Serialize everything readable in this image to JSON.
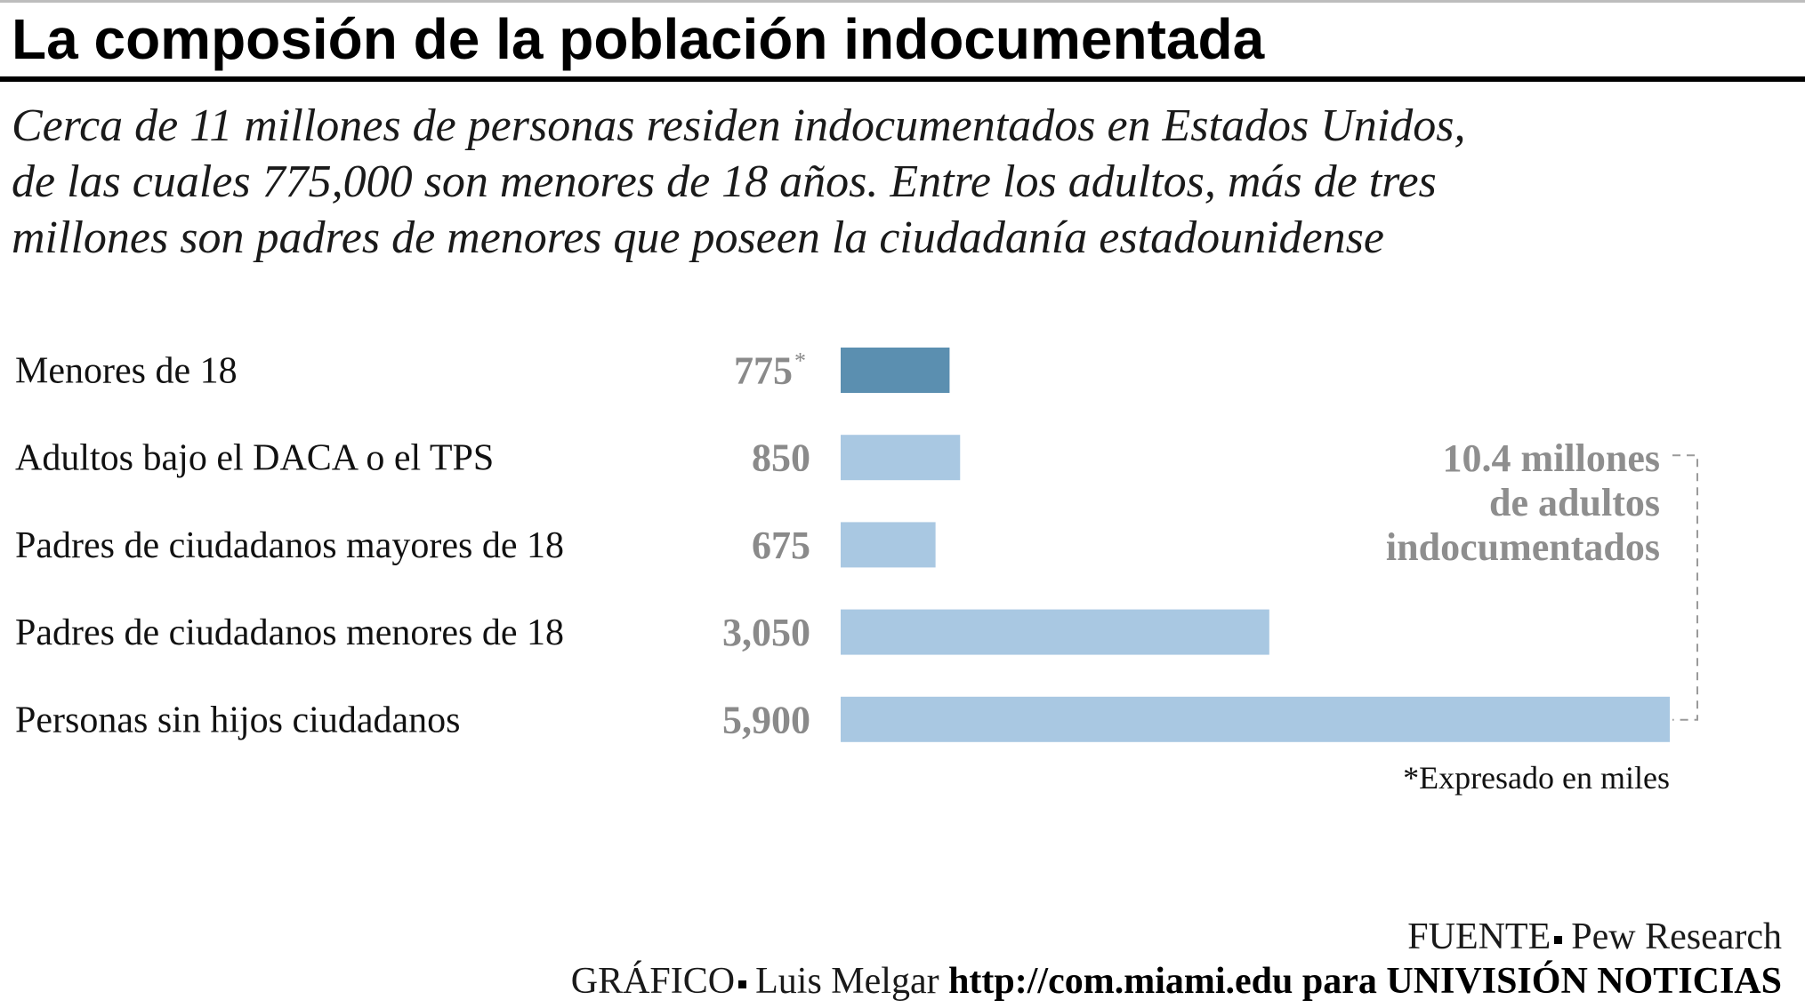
{
  "title": "La composión de la población indocumentada",
  "subtitle_lines": [
    "Cerca de 11 millones de personas residen indocumentados en Estados Unidos,",
    "de las cuales 775,000 son menores de 18 años. Entre los adultos, más de tres",
    "millones son padres de menores que poseen la ciudadanía estadounidense"
  ],
  "chart_data": {
    "type": "bar",
    "orientation": "horizontal",
    "categories": [
      "Menores de 18",
      "Adultos bajo el DACA o el TPS",
      "Padres de ciudadanos mayores de 18",
      "Padres de ciudadanos menores de 18",
      "Personas sin hijos ciudadanos"
    ],
    "values": [
      775,
      850,
      675,
      3050,
      5900
    ],
    "value_labels": [
      "775",
      "850",
      "675",
      "3,050",
      "5,900"
    ],
    "first_label_mark": "*",
    "colors": [
      "#5b8fb0",
      "#a9c8e2",
      "#a9c8e2",
      "#a9c8e2",
      "#a9c8e2"
    ],
    "bracket": {
      "label_lines": [
        "10.4 millones",
        "de adultos",
        "indocumentados"
      ],
      "spans_categories": [
        1,
        4
      ],
      "color": "#9a9a9a"
    },
    "note": "*Expresado en miles"
  },
  "footer": {
    "source_label": "FUENTE",
    "source_value": "Pew Research",
    "credit_label": "GRÁFICO",
    "credit_author": "Luis Melgar",
    "credit_link": "http://com.miami.edu para UNIVISIÓN NOTICIAS"
  }
}
